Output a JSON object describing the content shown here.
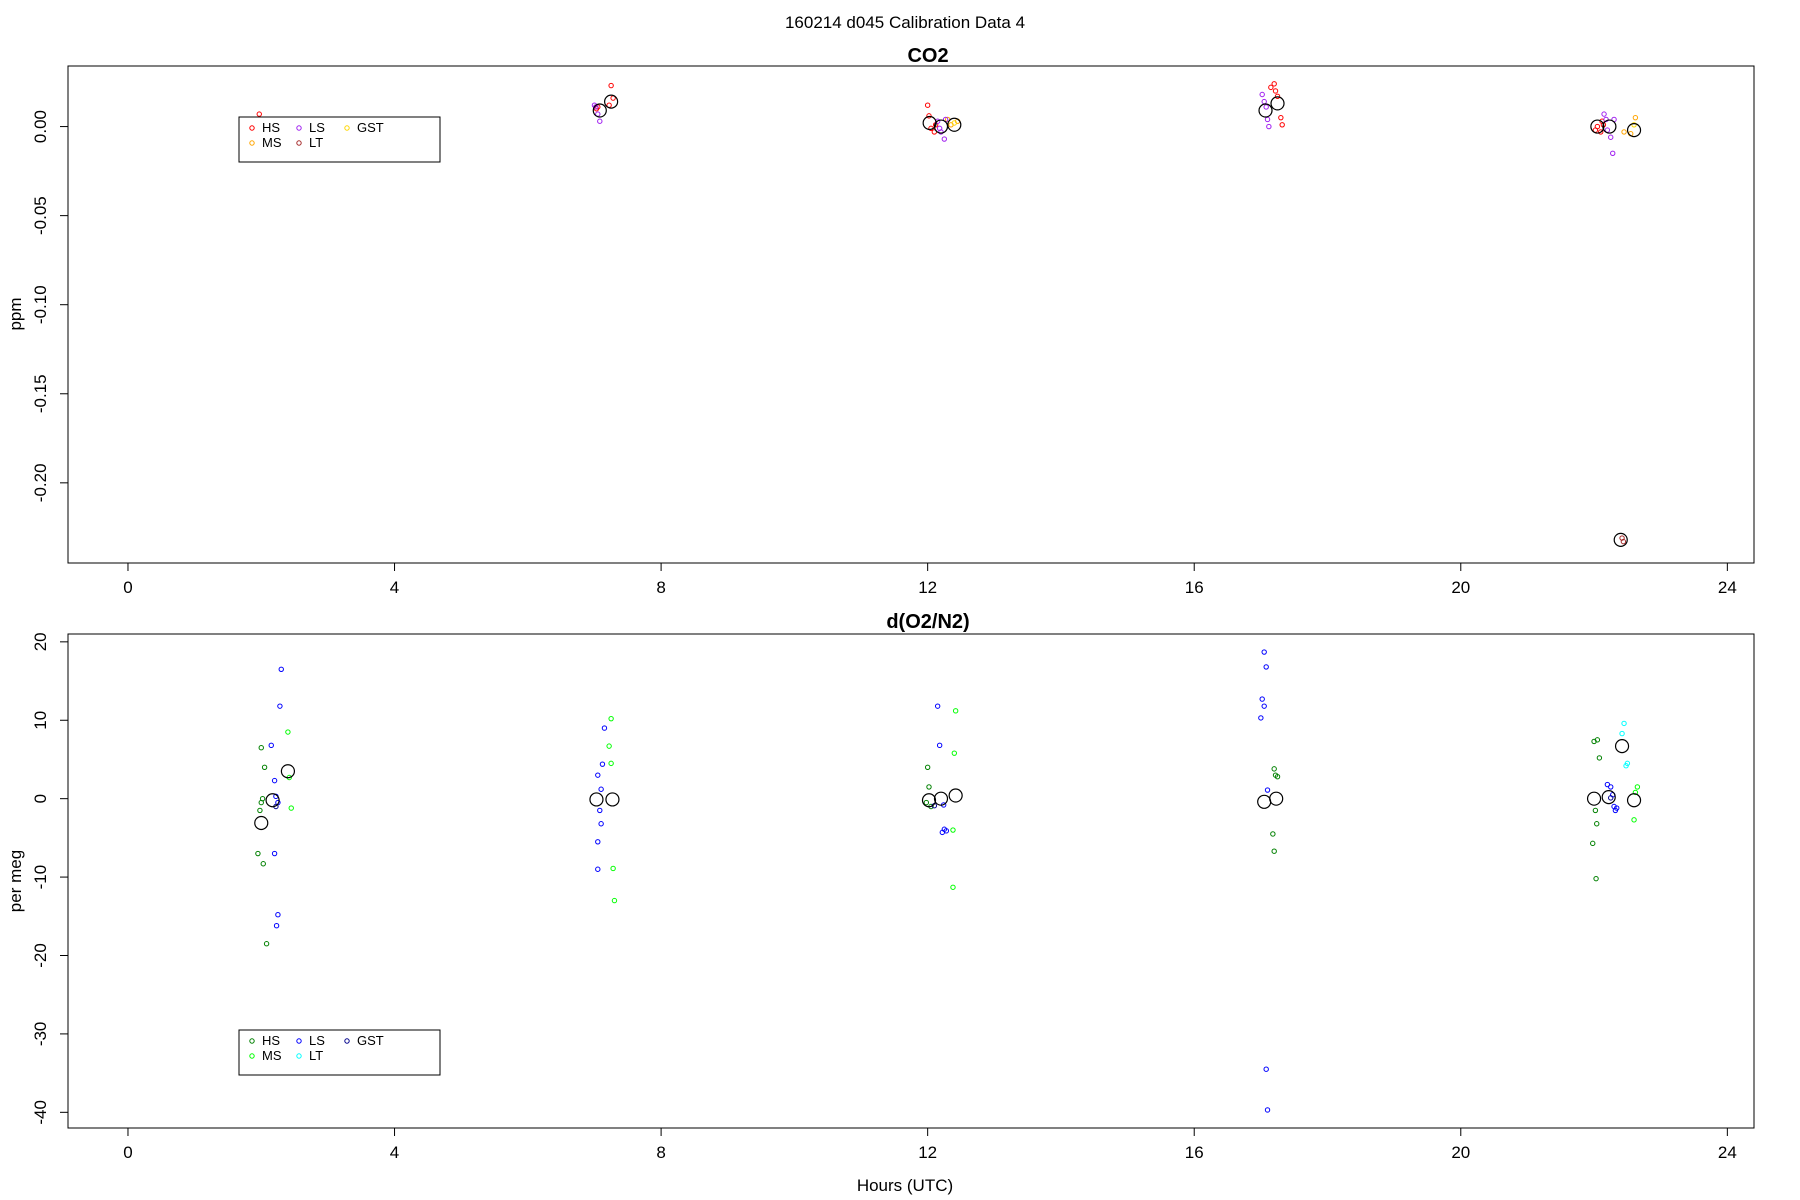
{
  "figure": {
    "title": "160214   d045   Calibration Data 4",
    "xlabel": "Hours (UTC)"
  },
  "chart_data": [
    {
      "type": "scatter",
      "title": "CO2",
      "xlabel": "",
      "ylabel": "ppm",
      "xlim": [
        -0.9,
        24.4
      ],
      "ylim": [
        -0.245,
        0.034
      ],
      "xticks": [
        0,
        4,
        8,
        12,
        16,
        20,
        24
      ],
      "yticks": [
        0.0,
        -0.05,
        -0.1,
        -0.15,
        -0.2
      ],
      "ytick_labels": [
        "0.00",
        "-0.05",
        "-0.10",
        "-0.15",
        "-0.20"
      ],
      "grid": false,
      "legend": {
        "position": "top-left",
        "entries": [
          {
            "label": "HS",
            "color": "#ff0000"
          },
          {
            "label": "MS",
            "color": "#ffa500"
          },
          {
            "label": "LS",
            "color": "#a020f0"
          },
          {
            "label": "LT",
            "color": "#a52a2a"
          },
          {
            "label": "GST",
            "color": "#ffd700"
          }
        ]
      },
      "series": [
        {
          "name": "HS",
          "color": "#ff0000",
          "points": [
            [
              1.97,
              0.007
            ],
            [
              7.03,
              0.01
            ],
            [
              7.05,
              0.011
            ],
            [
              7.25,
              0.023
            ],
            [
              7.28,
              0.016
            ],
            [
              7.22,
              0.012
            ],
            [
              12.0,
              0.012
            ],
            [
              12.02,
              0.006
            ],
            [
              12.05,
              -0.001
            ],
            [
              12.1,
              -0.003
            ],
            [
              12.12,
              0.001
            ],
            [
              17.15,
              0.022
            ],
            [
              17.2,
              0.024
            ],
            [
              17.22,
              0.02
            ],
            [
              17.25,
              0.017
            ],
            [
              17.3,
              0.005
            ],
            [
              17.32,
              0.001
            ],
            [
              22.02,
              -0.002
            ],
            [
              22.05,
              0.0
            ],
            [
              22.1,
              -0.003
            ],
            [
              22.12,
              0.003
            ],
            [
              22.14,
              0.001
            ]
          ]
        },
        {
          "name": "MS",
          "color": "#ffa500",
          "points": [
            [
              12.3,
              0.004
            ],
            [
              12.35,
              0.001
            ],
            [
              12.45,
              0.003
            ],
            [
              22.45,
              -0.003
            ],
            [
              22.55,
              -0.004
            ],
            [
              22.62,
              0.005
            ]
          ]
        },
        {
          "name": "LS",
          "color": "#a020f0",
          "points": [
            [
              7.0,
              0.012
            ],
            [
              7.02,
              0.011
            ],
            [
              7.05,
              0.007
            ],
            [
              7.08,
              0.003
            ],
            [
              12.15,
              0.003
            ],
            [
              12.18,
              -0.001
            ],
            [
              12.2,
              -0.003
            ],
            [
              12.25,
              -0.007
            ],
            [
              12.27,
              0.004
            ],
            [
              17.02,
              0.018
            ],
            [
              17.05,
              0.014
            ],
            [
              17.08,
              0.011
            ],
            [
              17.1,
              0.004
            ],
            [
              17.12,
              0.0
            ],
            [
              22.15,
              0.007
            ],
            [
              22.18,
              0.004
            ],
            [
              22.2,
              -0.002
            ],
            [
              22.25,
              -0.006
            ],
            [
              22.28,
              -0.015
            ],
            [
              22.3,
              0.004
            ]
          ]
        },
        {
          "name": "LT",
          "color": "#a52a2a",
          "points": [
            [
              22.42,
              -0.231
            ],
            [
              22.44,
              -0.233
            ]
          ]
        },
        {
          "name": "GST",
          "color": "#ffd700",
          "points": [
            [
              12.4,
              0.002
            ],
            [
              22.6,
              0.001
            ]
          ]
        },
        {
          "name": "",
          "color": "#000000",
          "mean": true,
          "points": [
            [
              7.08,
              0.009
            ],
            [
              7.25,
              0.014
            ],
            [
              12.03,
              0.002
            ],
            [
              12.2,
              0.0
            ],
            [
              12.4,
              0.001
            ],
            [
              17.07,
              0.009
            ],
            [
              17.25,
              0.013
            ],
            [
              22.05,
              0.0
            ],
            [
              22.23,
              0.0
            ],
            [
              22.4,
              -0.232
            ],
            [
              22.6,
              -0.002
            ]
          ]
        }
      ]
    },
    {
      "type": "scatter",
      "title": "d(O2/N2)",
      "xlabel": "Hours (UTC)",
      "ylabel": "per meg",
      "xlim": [
        -0.9,
        24.4
      ],
      "ylim": [
        -42.0,
        21.0
      ],
      "xticks": [
        0,
        4,
        8,
        12,
        16,
        20,
        24
      ],
      "yticks": [
        20,
        10,
        0,
        -10,
        -20,
        -30,
        -40
      ],
      "ytick_labels": [
        "20",
        "10",
        "0",
        "-10",
        "-20",
        "-30",
        "-40"
      ],
      "grid": false,
      "legend": {
        "position": "bottom-left",
        "entries": [
          {
            "label": "HS",
            "color": "#008000"
          },
          {
            "label": "MS",
            "color": "#00ff00"
          },
          {
            "label": "LS",
            "color": "#0000ff"
          },
          {
            "label": "LT",
            "color": "#00ffff"
          },
          {
            "label": "GST",
            "color": "#00008b"
          }
        ]
      },
      "series": [
        {
          "name": "HS",
          "color": "#008000",
          "points": [
            [
              2.0,
              6.5
            ],
            [
              2.05,
              4.0
            ],
            [
              2.02,
              0.0
            ],
            [
              2.0,
              -0.5
            ],
            [
              1.98,
              -1.5
            ],
            [
              1.95,
              -7.0
            ],
            [
              2.03,
              -8.3
            ],
            [
              2.08,
              -18.5
            ],
            [
              12.0,
              4.0
            ],
            [
              12.02,
              1.5
            ],
            [
              11.98,
              -0.5
            ],
            [
              12.05,
              -1.0
            ],
            [
              17.2,
              3.8
            ],
            [
              17.22,
              3.0
            ],
            [
              17.25,
              2.8
            ],
            [
              17.18,
              -4.5
            ],
            [
              17.2,
              -6.7
            ],
            [
              22.0,
              7.3
            ],
            [
              22.05,
              7.5
            ],
            [
              22.08,
              5.2
            ],
            [
              22.02,
              -1.5
            ],
            [
              22.04,
              -3.2
            ],
            [
              21.98,
              -5.7
            ],
            [
              22.03,
              -10.2
            ]
          ]
        },
        {
          "name": "MS",
          "color": "#00ff00",
          "points": [
            [
              2.4,
              8.5
            ],
            [
              2.42,
              2.7
            ],
            [
              2.45,
              -1.2
            ],
            [
              7.25,
              10.2
            ],
            [
              7.22,
              6.7
            ],
            [
              7.25,
              4.5
            ],
            [
              7.28,
              -8.9
            ],
            [
              7.3,
              -13.0
            ],
            [
              12.42,
              11.2
            ],
            [
              12.4,
              5.8
            ],
            [
              12.38,
              -4.0
            ],
            [
              12.38,
              -11.3
            ],
            [
              22.65,
              1.5
            ],
            [
              22.62,
              0.8
            ],
            [
              22.6,
              -2.7
            ]
          ]
        },
        {
          "name": "LS",
          "color": "#0000ff",
          "points": [
            [
              2.3,
              16.5
            ],
            [
              2.28,
              11.8
            ],
            [
              2.15,
              6.8
            ],
            [
              2.2,
              2.3
            ],
            [
              2.22,
              0.3
            ],
            [
              2.25,
              -0.5
            ],
            [
              2.2,
              -7.0
            ],
            [
              2.25,
              -14.8
            ],
            [
              2.23,
              -16.2
            ],
            [
              7.15,
              9.0
            ],
            [
              7.12,
              4.4
            ],
            [
              7.05,
              3.0
            ],
            [
              7.1,
              1.2
            ],
            [
              7.08,
              -1.5
            ],
            [
              7.1,
              -3.2
            ],
            [
              7.05,
              -5.5
            ],
            [
              7.05,
              -9.0
            ],
            [
              12.15,
              11.8
            ],
            [
              12.18,
              6.8
            ],
            [
              12.25,
              -3.9
            ],
            [
              12.22,
              -4.3
            ],
            [
              12.28,
              -4.1
            ],
            [
              12.24,
              -0.8
            ],
            [
              17.05,
              18.7
            ],
            [
              17.08,
              16.8
            ],
            [
              17.02,
              12.7
            ],
            [
              17.05,
              11.8
            ],
            [
              17.0,
              10.3
            ],
            [
              17.1,
              1.1
            ],
            [
              17.08,
              -34.5
            ],
            [
              17.1,
              -39.7
            ],
            [
              22.2,
              1.8
            ],
            [
              22.25,
              1.5
            ],
            [
              22.28,
              0.5
            ],
            [
              22.3,
              -1.0
            ],
            [
              22.32,
              -1.5
            ],
            [
              22.34,
              -1.2
            ]
          ]
        },
        {
          "name": "LT",
          "color": "#00ffff",
          "points": [
            [
              22.45,
              9.6
            ],
            [
              22.42,
              8.3
            ],
            [
              22.5,
              4.5
            ],
            [
              22.48,
              4.2
            ]
          ]
        },
        {
          "name": "GST",
          "color": "#00008b",
          "points": [
            [
              2.22,
              -1.0
            ],
            [
              12.1,
              -0.9
            ],
            [
              22.25,
              0.1
            ]
          ]
        },
        {
          "name": "",
          "color": "#000000",
          "mean": true,
          "points": [
            [
              2.0,
              -3.1
            ],
            [
              2.17,
              -0.2
            ],
            [
              2.4,
              3.5
            ],
            [
              7.03,
              -0.1
            ],
            [
              7.27,
              -0.1
            ],
            [
              12.02,
              -0.2
            ],
            [
              12.2,
              0.0
            ],
            [
              12.42,
              0.4
            ],
            [
              17.05,
              -0.4
            ],
            [
              17.23,
              0.0
            ],
            [
              22.0,
              0.0
            ],
            [
              22.22,
              0.2
            ],
            [
              22.42,
              6.7
            ],
            [
              22.6,
              -0.2
            ]
          ]
        }
      ]
    }
  ]
}
